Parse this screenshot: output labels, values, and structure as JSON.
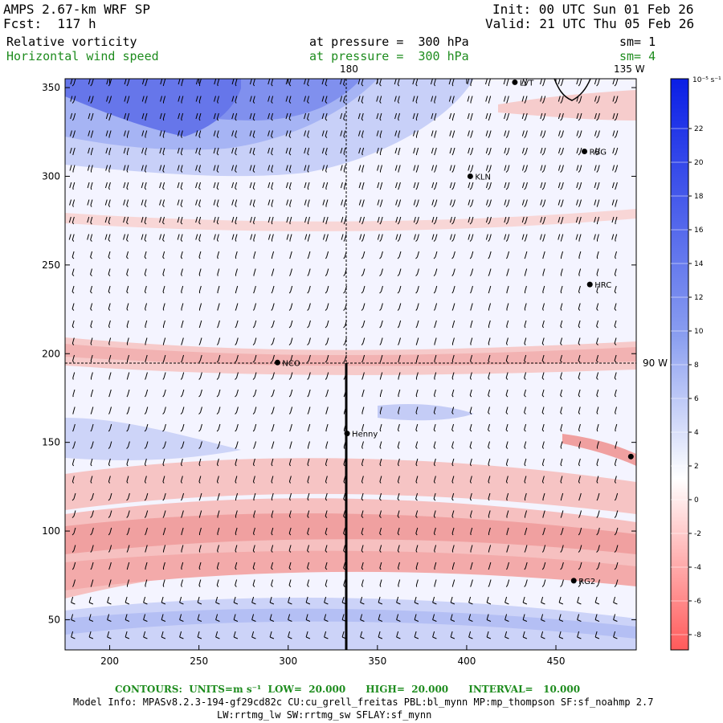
{
  "header": {
    "model_title": "AMPS 2.67-km WRF SP",
    "forecast": "Fcst:  117 h",
    "init": "Init: 00 UTC Sun 01 Feb 26",
    "valid": "Valid: 21 UTC Thu 05 Feb 26",
    "field1_name": "Relative vorticity",
    "field1_level": "at pressure =  300 hPa",
    "field1_sm": "sm= 1",
    "field2_name": "Horizontal wind speed",
    "field2_level": "at pressure =  300 hPa",
    "field2_sm": "sm= 4"
  },
  "map_labels": {
    "meridian_180": "180",
    "meridian_135w": "135 W",
    "meridian_90w": "90 W"
  },
  "chart_data": {
    "type": "heatmap",
    "x_ticks": [
      200,
      250,
      300,
      350,
      400,
      450
    ],
    "y_ticks": [
      50,
      100,
      150,
      200,
      250,
      300,
      350
    ],
    "xlim": [
      175,
      495
    ],
    "ylim": [
      33,
      355
    ],
    "colorbar": {
      "unit": "10⁻⁵ s⁻¹",
      "tick_labels": [
        22,
        20,
        18,
        16,
        14,
        12,
        10,
        8,
        6,
        4,
        2,
        0,
        -2,
        -4,
        -6,
        -8
      ],
      "positive_color": "#0a1ee6",
      "negative_color": "#ff5050"
    },
    "stations": [
      {
        "name": "LVT",
        "x": 427,
        "y": 353
      },
      {
        "name": "RBG",
        "x": 466,
        "y": 314
      },
      {
        "name": "KLN",
        "x": 402,
        "y": 300
      },
      {
        "name": "HRC",
        "x": 469,
        "y": 239
      },
      {
        "name": "NCO",
        "x": 294,
        "y": 195
      },
      {
        "name": "Henny",
        "x": 333,
        "y": 155
      },
      {
        "name": "",
        "x": 492,
        "y": 142
      },
      {
        "name": "RG2",
        "x": 460,
        "y": 72
      }
    ]
  },
  "footer": {
    "contours": "CONTOURS:  UNITS=m s⁻¹  LOW=  20.000      HIGH=  20.000      INTERVAL=   10.000",
    "model_info": "Model Info: MPASv8.2.3-194-gf29cd82c CU:cu_grell_freitas PBL:bl_mynn MP:mp_thompson SF:sf_noahmp 2.7",
    "model_info2": "LW:rrtmg_lw SW:rrtmg_sw SFLAY:sf_mynn"
  }
}
